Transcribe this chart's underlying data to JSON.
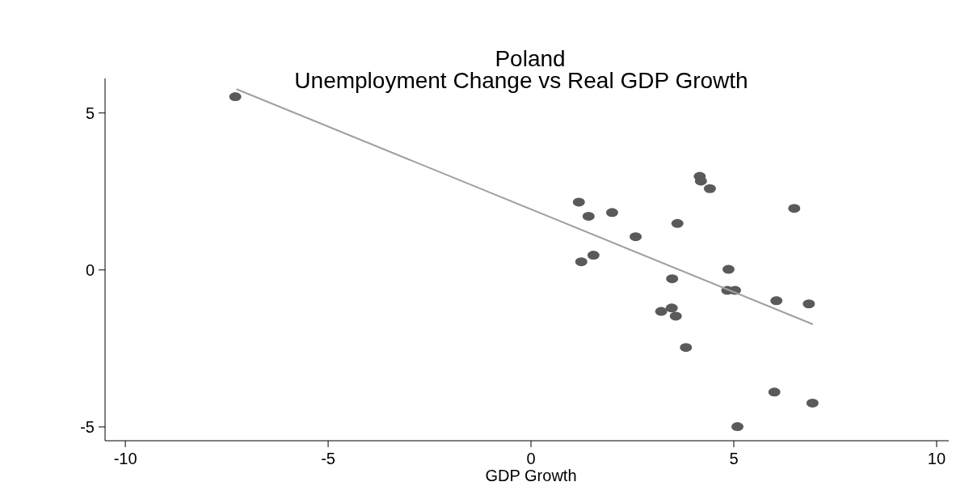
{
  "chart_data": {
    "type": "scatter",
    "title": "Poland",
    "subtitle": "Unemployment Change vs Real GDP Growth",
    "xlabel": "GDP Growth",
    "xlim": [
      -10.5,
      10.3
    ],
    "xticks": [
      -10,
      -5,
      0,
      5,
      10
    ],
    "ylim": [
      -5.44,
      6.1
    ],
    "yticks": [
      -5,
      0,
      5
    ],
    "grid": false,
    "marker": "circle",
    "series": [
      {
        "color": "#5a5a5a",
        "x": [
          -7.29,
          4.16,
          4.19,
          4.41,
          1.18,
          1.42,
          2.0,
          6.49,
          3.61,
          2.58,
          1.54,
          1.24,
          4.87,
          3.48,
          4.84,
          5.03,
          6.05,
          6.85,
          3.21,
          3.47,
          3.57,
          3.82,
          6.0,
          6.94,
          5.09
        ],
        "values": [
          5.52,
          2.98,
          2.83,
          2.59,
          2.16,
          1.71,
          1.83,
          1.96,
          1.48,
          1.06,
          0.47,
          0.26,
          0.02,
          -0.28,
          -0.65,
          -0.65,
          -0.98,
          -1.08,
          -1.32,
          -1.21,
          -1.47,
          -2.47,
          -3.89,
          -4.24,
          -4.99
        ]
      },
      {
        "type": "line",
        "color": "#a0a0a0",
        "x": [
          -7.26,
          6.95
        ],
        "values": [
          5.76,
          -1.73
        ],
        "marker": "none"
      }
    ]
  }
}
